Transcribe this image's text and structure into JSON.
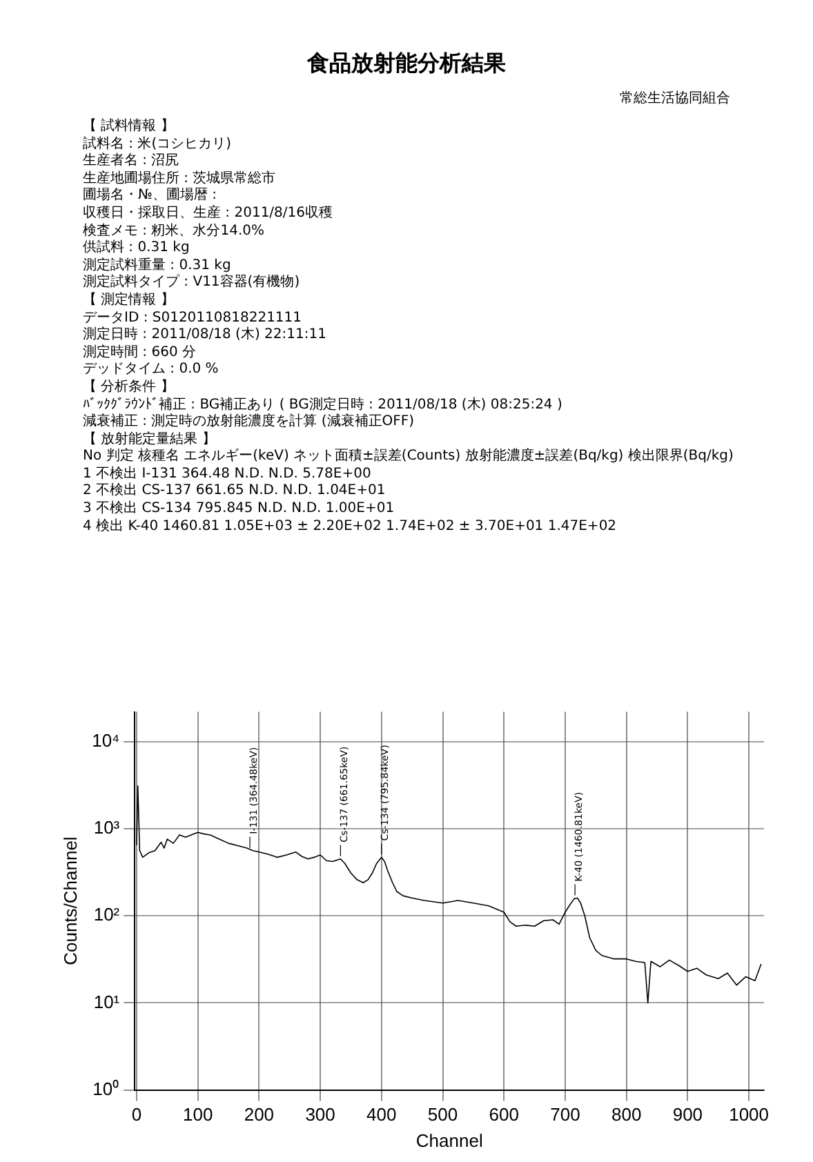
{
  "chart_data": {
    "type": "line",
    "title": "食品放射能分析結果",
    "subtitle": "常総生活協同組合",
    "xlabel": "Channel",
    "ylabel": "Counts/Channel",
    "x": [
      0,
      2,
      5,
      10,
      20,
      30,
      40,
      45,
      50,
      60,
      70,
      80,
      100,
      110,
      120,
      135,
      150,
      165,
      180,
      190,
      200,
      215,
      230,
      245,
      260,
      270,
      280,
      290,
      300,
      310,
      320,
      333,
      340,
      350,
      360,
      370,
      378,
      385,
      392,
      400,
      405,
      410,
      418,
      425,
      435,
      450,
      470,
      500,
      525,
      550,
      575,
      600,
      610,
      620,
      635,
      650,
      665,
      680,
      690,
      700,
      708,
      715,
      720,
      725,
      732,
      740,
      750,
      760,
      780,
      800,
      815,
      830,
      835,
      840,
      855,
      870,
      885,
      900,
      915,
      930,
      950,
      965,
      980,
      995,
      1010,
      1020
    ],
    "values": [
      650,
      3100,
      560,
      470,
      530,
      560,
      700,
      600,
      760,
      680,
      850,
      800,
      910,
      870,
      850,
      760,
      680,
      640,
      600,
      560,
      540,
      510,
      470,
      500,
      540,
      480,
      450,
      470,
      500,
      430,
      420,
      450,
      400,
      310,
      260,
      240,
      260,
      310,
      400,
      470,
      420,
      330,
      240,
      190,
      170,
      160,
      150,
      140,
      150,
      140,
      130,
      110,
      85,
      76,
      78,
      76,
      88,
      90,
      80,
      110,
      135,
      158,
      160,
      141,
      100,
      56,
      40,
      35,
      32,
      32,
      30,
      29,
      10,
      30,
      26,
      31,
      27,
      23,
      25,
      21,
      19,
      22,
      16,
      20,
      18,
      28
    ],
    "color": "#000000",
    "log": "y",
    "xlim": [
      -3,
      1025
    ],
    "ylim": [
      1,
      22000
    ],
    "xticks": [
      0,
      100,
      200,
      300,
      400,
      500,
      600,
      700,
      800,
      900,
      1000
    ],
    "yticks": [
      {
        "value": 1,
        "label": "10⁰"
      },
      {
        "value": 10,
        "label": "10¹"
      },
      {
        "value": 100,
        "label": "10²"
      },
      {
        "value": 1000,
        "label": "10³"
      },
      {
        "value": 10000,
        "label": "10⁴"
      }
    ],
    "grid": true,
    "legend": false,
    "marker": "none",
    "line_style": "solid",
    "annotations": [
      {
        "text": "I-131 (364.48keV)",
        "x": 185,
        "y": 560
      },
      {
        "text": "Cs-137 (661.65keV)",
        "x": 333,
        "y": 450
      },
      {
        "text": "Cs-134 (795.84keV)",
        "x": 400,
        "y": 470
      },
      {
        "text": "K-40 (1460.81keV)",
        "x": 716,
        "y": 160
      },
      "【 試料情報 】",
      "試料名 : 米(コシヒカリ)",
      "生産者名 : 沼尻",
      "生産地圃場住所 : 茨城県常総市",
      "圃場名・№、圃場暦 :",
      "収穫日・採取日、生産 : 2011/8/16収穫",
      "検査メモ : 籾米、水分14.0%",
      "供試料 : 0.31 kg",
      "測定試料重量 : 0.31 kg",
      "測定試料タイプ : V11容器(有機物)",
      "【 測定情報 】",
      "データID : S0120110818221111",
      "測定日時 : 2011/08/18 (木) 22:11:11",
      "測定時間 : 660 分",
      "デッドタイム : 0.0 %",
      "【 分析条件 】",
      "ﾊﾞｯｸｸﾞﾗｳﾝﾄﾞ補正 : BG補正あり ( BG測定日時 : 2011/08/18 (木) 08:25:24 )",
      "減衰補正 : 測定時の放射能濃度を計算 (減衰補正OFF)",
      "【 放射能定量結果 】",
      "No 判定 核種名 エネルギー(keV) ネット面積±誤差(Counts) 放射能濃度±誤差(Bq/kg) 検出限界(Bq/kg)",
      "1 不検出 I-131 364.48 N.D. N.D. 5.78E+00",
      "2 不検出 CS-137 661.65 N.D. N.D. 1.04E+01",
      "3 不検出 CS-134 795.845 N.D. N.D. 1.00E+01",
      "4 検出 K-40 1460.81 1.05E+03 ± 2.20E+02 1.74E+02 ± 3.70E+01 1.47E+02"
    ]
  }
}
